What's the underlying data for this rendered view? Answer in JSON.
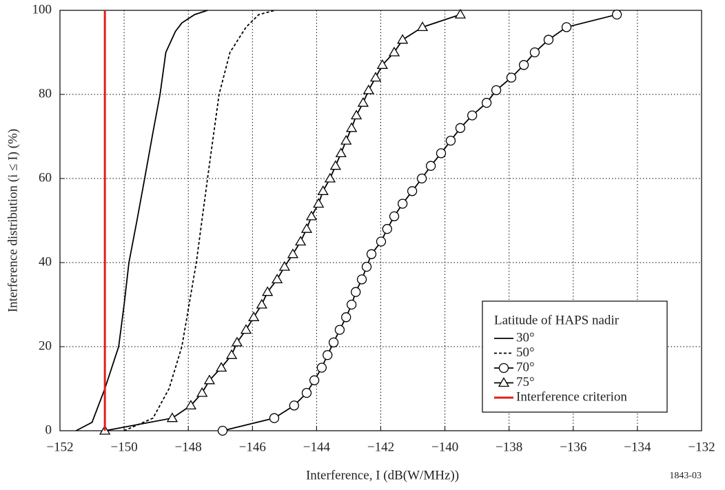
{
  "chart_data": {
    "type": "line",
    "ylabel": "Interference distribution (i ≤ I) (%)",
    "xlabel": "Interference, I  (dB(W/MHz))",
    "footnote": "1843-03",
    "legend_title": "Latitude of HAPS nadir",
    "legend_position": "lower right",
    "grid": true,
    "xlim": [
      -152,
      -132
    ],
    "ylim": [
      0,
      100
    ],
    "xticks": [
      {
        "value": -152,
        "label": "−152"
      },
      {
        "value": -150,
        "label": "−150"
      },
      {
        "value": -148,
        "label": "−148"
      },
      {
        "value": -146,
        "label": "−146"
      },
      {
        "value": -144,
        "label": "−144"
      },
      {
        "value": -142,
        "label": "−142"
      },
      {
        "value": -140,
        "label": "−140"
      },
      {
        "value": -138,
        "label": "−138"
      },
      {
        "value": -136,
        "label": "−136"
      },
      {
        "value": -134,
        "label": "−134"
      },
      {
        "value": -132,
        "label": "−132"
      }
    ],
    "yticks": [
      0,
      20,
      40,
      60,
      80,
      100
    ],
    "series": [
      {
        "name": "30°",
        "color": "#000000",
        "dash": "solid",
        "marker": "none",
        "x": [
          -151.5,
          -151,
          -150.6,
          -150.3,
          -150.17,
          -150,
          -149.85,
          -149.6,
          -149.36,
          -149.1,
          -148.88,
          -148.7,
          -148.4,
          -148.2,
          -147.8,
          -147.4
        ],
        "values": [
          0,
          2,
          10,
          17,
          20,
          30,
          40,
          50,
          60,
          71,
          80,
          90,
          95,
          97,
          99,
          100
        ]
      },
      {
        "name": "50°",
        "color": "#000000",
        "dash": "dashed",
        "marker": "none",
        "x": [
          -150,
          -149.1,
          -148.6,
          -148.2,
          -147.75,
          -147.4,
          -147.04,
          -146.7,
          -146.2,
          -145.8,
          -145.3
        ],
        "values": [
          0,
          3,
          10,
          20,
          40,
          60,
          80,
          90,
          96,
          99,
          100
        ]
      },
      {
        "name": "70°",
        "color": "#000000",
        "dash": "solid",
        "marker": "circle",
        "x": [
          -146.93,
          -145.32,
          -144.7,
          -144.31,
          -144.07,
          -143.84,
          -143.66,
          -143.47,
          -143.28,
          -143.08,
          -142.91,
          -142.78,
          -142.59,
          -142.44,
          -142.29,
          -141.99,
          -141.8,
          -141.58,
          -141.32,
          -141.02,
          -140.72,
          -140.44,
          -140.12,
          -139.82,
          -139.52,
          -139.15,
          -138.7,
          -138.4,
          -137.93,
          -137.54,
          -137.2,
          -136.77,
          -136.21,
          -134.64
        ],
        "values": [
          0,
          3,
          6,
          9,
          12,
          15,
          18,
          21,
          24,
          27,
          30,
          33,
          36,
          39,
          42,
          45,
          48,
          51,
          54,
          57,
          60,
          63,
          66,
          69,
          72,
          75,
          78,
          81,
          84,
          87,
          90,
          93,
          96,
          99
        ]
      },
      {
        "name": "75°",
        "color": "#000000",
        "dash": "solid",
        "marker": "triangle",
        "x": [
          -150.6,
          -148.5,
          -147.92,
          -147.57,
          -147.34,
          -146.97,
          -146.65,
          -146.48,
          -146.2,
          -145.96,
          -145.71,
          -145.53,
          -145.23,
          -145.0,
          -144.74,
          -144.5,
          -144.31,
          -144.16,
          -143.94,
          -143.8,
          -143.58,
          -143.41,
          -143.24,
          -143.08,
          -142.91,
          -142.76,
          -142.55,
          -142.38,
          -142.16,
          -141.95,
          -141.58,
          -141.32,
          -140.7,
          -139.52
        ],
        "values": [
          0,
          3,
          6,
          9,
          12,
          15,
          18,
          21,
          24,
          27,
          30,
          33,
          36,
          39,
          42,
          45,
          48,
          51,
          54,
          57,
          60,
          63,
          66,
          69,
          72,
          75,
          78,
          81,
          84,
          87,
          90,
          93,
          96,
          99
        ]
      }
    ],
    "criterion": {
      "name": "Interference criterion",
      "color": "#e0201b",
      "x": -150.6
    }
  }
}
